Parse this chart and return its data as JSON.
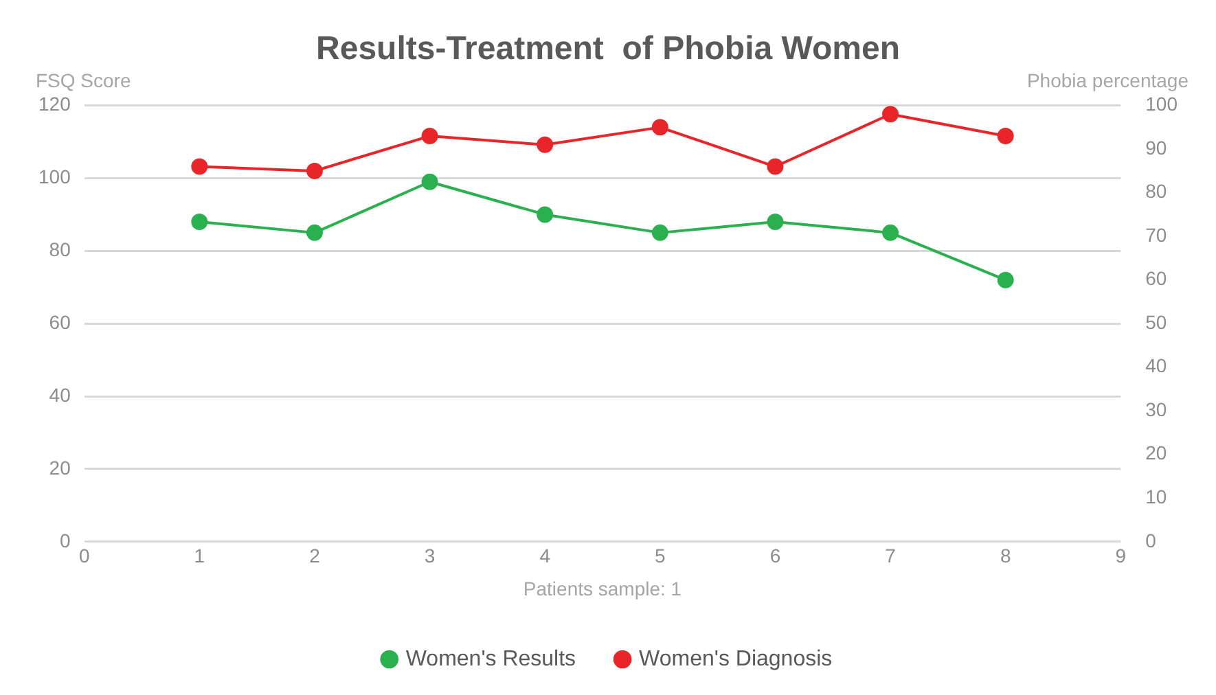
{
  "chart_data": {
    "type": "line",
    "title": "Results-Treatment  of Phobia Women",
    "xlabel": "Patients sample: 1",
    "ylabel": "FSQ Score",
    "y2label": "Phobia percentage",
    "x": [
      1,
      2,
      3,
      4,
      5,
      6,
      7,
      8
    ],
    "series": [
      {
        "name": "Women's Results",
        "color": "#2bb04f",
        "values": [
          88,
          85,
          99,
          90,
          85,
          88,
          85,
          72
        ]
      },
      {
        "name": "Women's Diagnosis",
        "color": "#e8262a",
        "axis": "y2",
        "values": [
          86,
          85,
          93,
          91,
          95,
          86,
          98,
          93
        ]
      }
    ],
    "xlim": [
      0,
      9
    ],
    "xticks": [
      0,
      1,
      2,
      3,
      4,
      5,
      6,
      7,
      8,
      9
    ],
    "ylim": [
      0,
      120
    ],
    "yticks": [
      0,
      20,
      40,
      60,
      80,
      100,
      120
    ],
    "y2lim": [
      0,
      100
    ],
    "y2ticks": [
      0,
      10,
      20,
      30,
      40,
      50,
      60,
      70,
      80,
      90,
      100
    ],
    "grid": "y",
    "legend": "bottom",
    "marker": "circle",
    "line_style": "solid"
  }
}
